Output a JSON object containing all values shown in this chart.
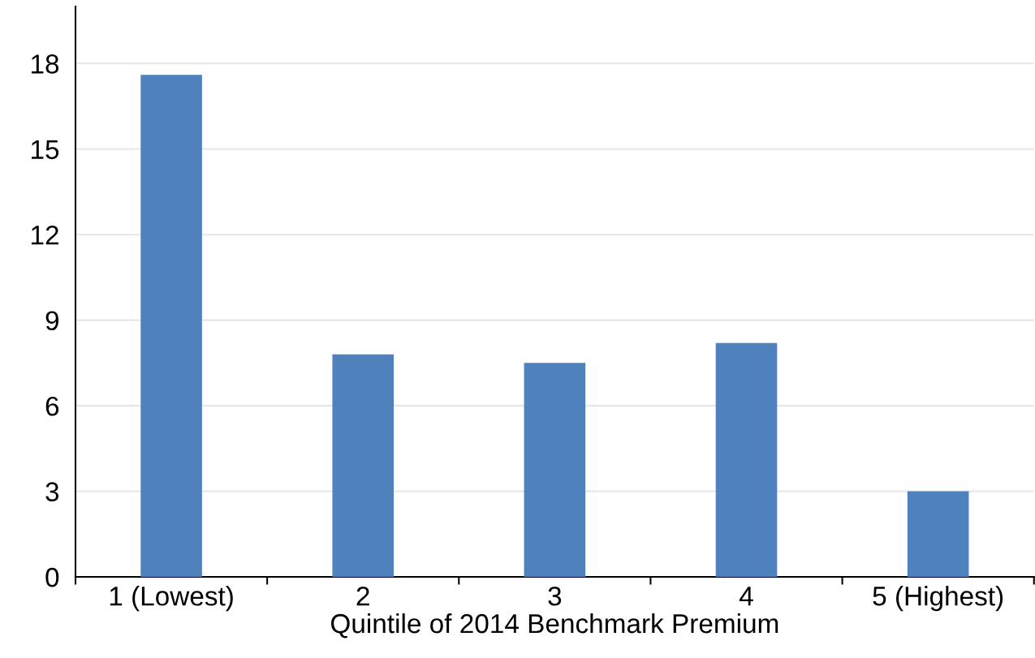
{
  "chart_data": {
    "type": "bar",
    "xlabel": "Quintile of 2014 Benchmark Premium",
    "categories": [
      "1 (Lowest)",
      "2",
      "3",
      "4",
      "5 (Highest)"
    ],
    "values": [
      17.6,
      7.8,
      7.5,
      8.2,
      3.0
    ],
    "color": "#4f81bd",
    "ylim": [
      0,
      20
    ],
    "yticks": [
      0,
      3,
      6,
      9,
      12,
      15,
      18
    ],
    "grid": "y"
  }
}
